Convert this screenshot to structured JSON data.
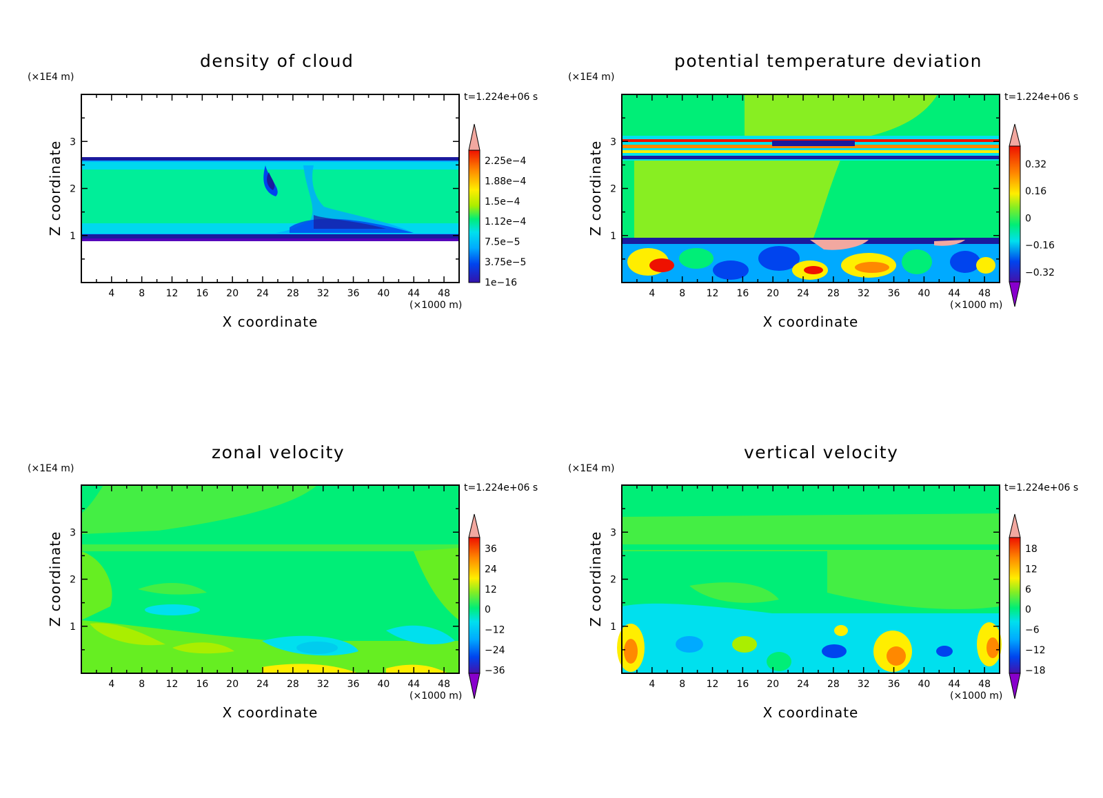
{
  "chart_data": [
    {
      "type": "heatmap",
      "title": "density of cloud",
      "xlabel": "X coordinate",
      "ylabel": "Z coordinate",
      "x_unit": "(×1000 m)",
      "y_unit": "(×1E4 m)",
      "time_label": "t=1.224e+06 s",
      "xticks": [
        "4",
        "8",
        "12",
        "16",
        "20",
        "24",
        "28",
        "32",
        "36",
        "40",
        "44",
        "48"
      ],
      "yticks": [
        "1",
        "2",
        "3"
      ],
      "xlim": [
        0,
        50
      ],
      "ylim": [
        0,
        4
      ],
      "colorbar": [
        "2.25e-4",
        "1.88e-4",
        "1.5e-4",
        "1.12e-4",
        "7.5e-5",
        "3.75e-5",
        "1e-16"
      ],
      "cloud_layer_z": [
        0.9,
        2.6
      ]
    },
    {
      "type": "heatmap",
      "title": "potential temperature deviation",
      "xlabel": "X coordinate",
      "ylabel": "Z coordinate",
      "x_unit": "(×1000 m)",
      "y_unit": "(×1E4 m)",
      "time_label": "t=1.224e+06 s",
      "xticks": [
        "4",
        "8",
        "12",
        "16",
        "20",
        "24",
        "28",
        "32",
        "36",
        "40",
        "44",
        "48"
      ],
      "yticks": [
        "1",
        "2",
        "3"
      ],
      "xlim": [
        0,
        50
      ],
      "ylim": [
        0,
        4
      ],
      "colorbar": [
        "0.32",
        "0.16",
        "0",
        "-0.16",
        "-0.32"
      ]
    },
    {
      "type": "heatmap",
      "title": "zonal velocity",
      "xlabel": "X coordinate",
      "ylabel": "Z coordinate",
      "x_unit": "(×1000 m)",
      "y_unit": "(×1E4 m)",
      "time_label": "t=1.224e+06 s",
      "xticks": [
        "4",
        "8",
        "12",
        "16",
        "20",
        "24",
        "28",
        "32",
        "36",
        "40",
        "44",
        "48"
      ],
      "yticks": [
        "1",
        "2",
        "3"
      ],
      "xlim": [
        0,
        50
      ],
      "ylim": [
        0,
        4
      ],
      "colorbar": [
        "36",
        "24",
        "12",
        "0",
        "-12",
        "-24",
        "-36"
      ]
    },
    {
      "type": "heatmap",
      "title": "vertical velocity",
      "xlabel": "X coordinate",
      "ylabel": "Z coordinate",
      "x_unit": "(×1000 m)",
      "y_unit": "(×1E4 m)",
      "time_label": "t=1.224e+06 s",
      "xticks": [
        "4",
        "8",
        "12",
        "16",
        "20",
        "24",
        "28",
        "32",
        "36",
        "40",
        "44",
        "48"
      ],
      "yticks": [
        "1",
        "2",
        "3"
      ],
      "xlim": [
        0,
        50
      ],
      "ylim": [
        0,
        4
      ],
      "colorbar": [
        "18",
        "12",
        "6",
        "0",
        "-6",
        "-12",
        "-18"
      ]
    }
  ],
  "colors": {
    "background": "#ffffff",
    "neutral_field": "#00ee77",
    "light_green": "#66ee22",
    "yellow_green": "#aaee00",
    "yellow": "#ffee00",
    "orange": "#ff8800",
    "red": "#ee1100",
    "pink": "#f2a8a0",
    "cyan": "#00e0ee",
    "light_blue": "#00aaff",
    "blue": "#0044ee",
    "dark_blue": "#1a1a9e",
    "purple": "#7b00c4"
  }
}
